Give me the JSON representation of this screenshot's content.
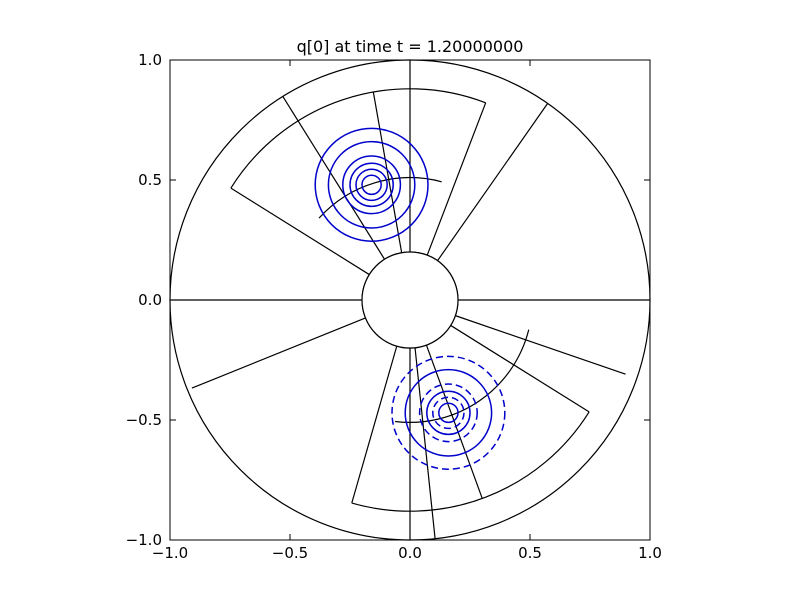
{
  "chart_data": {
    "type": "contour",
    "title": "q[0] at time t =     1.20000000",
    "xlabel": "",
    "ylabel": "",
    "xlim": [
      -1.0,
      1.0
    ],
    "ylim": [
      -1.0,
      1.0
    ],
    "x_ticks": [
      {
        "value": -1.0,
        "label": "−1.0"
      },
      {
        "value": -0.5,
        "label": "−0.5"
      },
      {
        "value": 0.0,
        "label": "0.0"
      },
      {
        "value": 0.5,
        "label": "0.5"
      },
      {
        "value": 1.0,
        "label": "1.0"
      }
    ],
    "y_ticks": [
      {
        "value": -1.0,
        "label": "−1.0"
      },
      {
        "value": -0.5,
        "label": "−0.5"
      },
      {
        "value": 0.0,
        "label": "0.0"
      },
      {
        "value": 0.5,
        "label": "0.5"
      },
      {
        "value": 1.0,
        "label": "1.0"
      }
    ],
    "grid": false,
    "colors": {
      "contour": "#0000cc",
      "mesh": "#000000"
    },
    "domain": {
      "type": "annulus",
      "center": [
        0.0,
        0.0
      ],
      "inner_radius": 0.2,
      "outer_radius": 1.0
    },
    "patch_sectors": [
      {
        "r_inner": 0.2,
        "r_outer": 0.88,
        "theta_start_deg": 69,
        "theta_end_deg": 148
      },
      {
        "r_inner": 0.2,
        "r_outer": 0.88,
        "theta_start_deg": -106,
        "theta_end_deg": -32
      }
    ],
    "patch_inner_arcs": [
      {
        "radius": 0.51,
        "theta_start_deg": 75,
        "theta_end_deg": 138
      },
      {
        "radius": 0.51,
        "theta_start_deg": -97,
        "theta_end_deg": -14
      }
    ],
    "radial_mesh_lines": [
      {
        "theta_deg": 90,
        "r_start": 0.2,
        "r_end": 1.0
      },
      {
        "theta_deg": -90,
        "r_start": 0.2,
        "r_end": 1.0
      },
      {
        "theta_deg": 0,
        "r_start": 0.2,
        "r_end": 1.0
      },
      {
        "theta_deg": 180,
        "r_start": 0.2,
        "r_end": 1.0
      },
      {
        "theta_deg": 55,
        "r_start": 0.2,
        "r_end": 1.0
      },
      {
        "theta_deg": 122,
        "r_start": 0.2,
        "r_end": 1.0
      },
      {
        "theta_deg": 100,
        "r_start": 0.2,
        "r_end": 0.88
      },
      {
        "theta_deg": -84,
        "r_start": 0.2,
        "r_end": 1.0
      },
      {
        "theta_deg": -70,
        "r_start": 0.2,
        "r_end": 0.88
      },
      {
        "theta_deg": -19,
        "r_start": 0.2,
        "r_end": 0.95
      },
      {
        "theta_deg": -158,
        "r_start": 0.2,
        "r_end": 0.98
      },
      {
        "theta_deg": -168,
        "r_start": 0.2,
        "r_end": 0.2
      }
    ],
    "contour_series": [
      {
        "center": [
          -0.16,
          0.48
        ],
        "style": "solid",
        "radii": [
          0.04,
          0.065,
          0.09,
          0.12,
          0.18,
          0.235
        ]
      },
      {
        "center": [
          0.16,
          -0.47
        ],
        "style": "dashed",
        "radii": [
          0.04,
          0.065,
          0.09,
          0.12,
          0.18,
          0.235
        ]
      }
    ]
  }
}
